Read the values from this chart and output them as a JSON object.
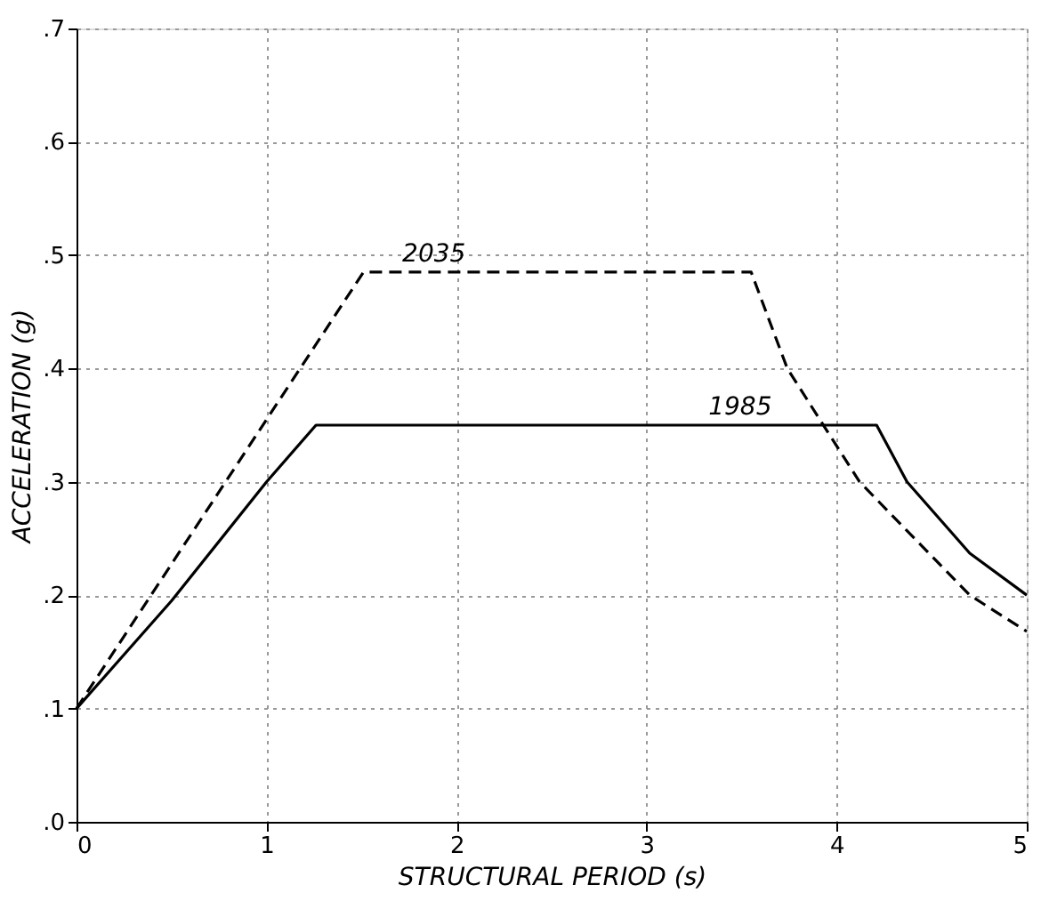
{
  "chart_data": {
    "type": "line",
    "xlabel": "STRUCTURAL PERIOD  (s)",
    "ylabel": "ACCELERATION   (g)",
    "xlim": [
      0,
      5
    ],
    "ylim": [
      0,
      0.7
    ],
    "xticks": [
      0,
      1,
      2,
      3,
      4,
      5
    ],
    "yticks": [
      {
        "value": 0,
        "label": ".0"
      },
      {
        "value": 0.1,
        "label": ".1"
      },
      {
        "value": 0.2,
        "label": ".2"
      },
      {
        "value": 0.3,
        "label": ".3"
      },
      {
        "value": 0.4,
        "label": ".4"
      },
      {
        "value": 0.5,
        "label": ".5"
      },
      {
        "value": 0.6,
        "label": ".6"
      },
      {
        "value": 0.7,
        "label": ".7"
      }
    ],
    "grid": true,
    "marker": "none",
    "series": [
      {
        "name": "1985",
        "color": "#000000",
        "line_style": "solid",
        "x": [
          0,
          0.5,
          1,
          1.26,
          4.21,
          4.37,
          4.7,
          5
        ],
        "values": [
          0.1,
          0.195,
          0.3,
          0.35,
          0.35,
          0.3,
          0.237,
          0.2
        ]
      },
      {
        "name": "2035",
        "color": "#000000",
        "line_style": "dashed",
        "x": [
          0,
          1.51,
          3.55,
          3.74,
          4.12,
          4.7,
          5
        ],
        "values": [
          0.1,
          0.485,
          0.485,
          0.4,
          0.3,
          0.2,
          0.168
        ]
      }
    ]
  }
}
